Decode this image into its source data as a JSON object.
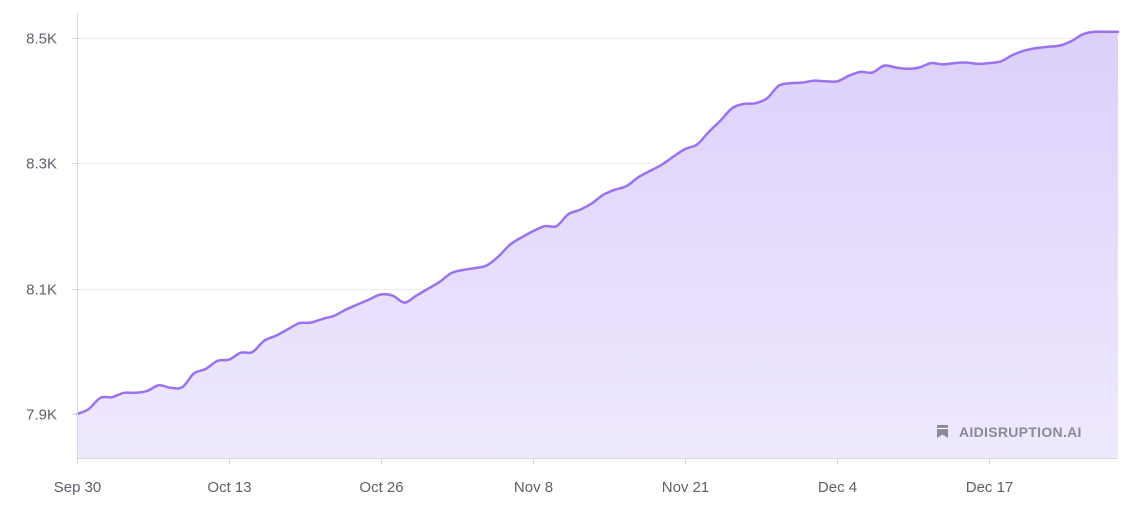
{
  "chart_data": {
    "type": "area",
    "x_tick_labels": [
      "Sep 30",
      "Oct 13",
      "Oct 26",
      "Nov 8",
      "Nov 21",
      "Dec 4",
      "Dec 17"
    ],
    "y_tick_labels": [
      "7.9K",
      "8.1K",
      "8.3K",
      "8.5K"
    ],
    "y_tick_values": [
      7900,
      8100,
      8300,
      8500
    ],
    "xlim": [
      "2024-09-30",
      "2024-12-28"
    ],
    "ylim": [
      7830,
      8540
    ],
    "grid": true,
    "colors": {
      "line": "#9b72ee",
      "fill_top": "#dcd0fb",
      "fill_bottom": "#efe9fe",
      "grid": "#ececf0"
    },
    "series": [
      {
        "values": [
          [
            "2024-09-30",
            7900
          ],
          [
            "2024-10-01",
            7908
          ],
          [
            "2024-10-02",
            7926
          ],
          [
            "2024-10-03",
            7927
          ],
          [
            "2024-10-04",
            7934
          ],
          [
            "2024-10-05",
            7934
          ],
          [
            "2024-10-06",
            7937
          ],
          [
            "2024-10-07",
            7946
          ],
          [
            "2024-10-08",
            7942
          ],
          [
            "2024-10-09",
            7943
          ],
          [
            "2024-10-10",
            7965
          ],
          [
            "2024-10-11",
            7972
          ],
          [
            "2024-10-12",
            7985
          ],
          [
            "2024-10-13",
            7987
          ],
          [
            "2024-10-14",
            7998
          ],
          [
            "2024-10-15",
            7999
          ],
          [
            "2024-10-16",
            8017
          ],
          [
            "2024-10-17",
            8025
          ],
          [
            "2024-10-18",
            8035
          ],
          [
            "2024-10-19",
            8045
          ],
          [
            "2024-10-20",
            8046
          ],
          [
            "2024-10-21",
            8052
          ],
          [
            "2024-10-22",
            8057
          ],
          [
            "2024-10-23",
            8067
          ],
          [
            "2024-10-24",
            8075
          ],
          [
            "2024-10-25",
            8083
          ],
          [
            "2024-10-26",
            8091
          ],
          [
            "2024-10-27",
            8089
          ],
          [
            "2024-10-28",
            8078
          ],
          [
            "2024-10-29",
            8089
          ],
          [
            "2024-10-30",
            8100
          ],
          [
            "2024-10-31",
            8111
          ],
          [
            "2024-11-01",
            8125
          ],
          [
            "2024-11-02",
            8130
          ],
          [
            "2024-11-03",
            8133
          ],
          [
            "2024-11-04",
            8137
          ],
          [
            "2024-11-05",
            8151
          ],
          [
            "2024-11-06",
            8170
          ],
          [
            "2024-11-07",
            8182
          ],
          [
            "2024-11-08",
            8192
          ],
          [
            "2024-11-09",
            8200
          ],
          [
            "2024-11-10",
            8200
          ],
          [
            "2024-11-11",
            8219
          ],
          [
            "2024-11-12",
            8226
          ],
          [
            "2024-11-13",
            8236
          ],
          [
            "2024-11-14",
            8250
          ],
          [
            "2024-11-15",
            8258
          ],
          [
            "2024-11-16",
            8264
          ],
          [
            "2024-11-17",
            8278
          ],
          [
            "2024-11-18",
            8288
          ],
          [
            "2024-11-19",
            8298
          ],
          [
            "2024-11-20",
            8311
          ],
          [
            "2024-11-21",
            8323
          ],
          [
            "2024-11-22",
            8330
          ],
          [
            "2024-11-23",
            8350
          ],
          [
            "2024-11-24",
            8368
          ],
          [
            "2024-11-25",
            8388
          ],
          [
            "2024-11-26",
            8395
          ],
          [
            "2024-11-27",
            8396
          ],
          [
            "2024-11-28",
            8404
          ],
          [
            "2024-11-29",
            8424
          ],
          [
            "2024-11-30",
            8428
          ],
          [
            "2024-12-01",
            8429
          ],
          [
            "2024-12-02",
            8432
          ],
          [
            "2024-12-03",
            8431
          ],
          [
            "2024-12-04",
            8431
          ],
          [
            "2024-12-05",
            8440
          ],
          [
            "2024-12-06",
            8446
          ],
          [
            "2024-12-07",
            8445
          ],
          [
            "2024-12-08",
            8456
          ],
          [
            "2024-12-09",
            8453
          ],
          [
            "2024-12-10",
            8451
          ],
          [
            "2024-12-11",
            8453
          ],
          [
            "2024-12-12",
            8460
          ],
          [
            "2024-12-13",
            8458
          ],
          [
            "2024-12-14",
            8460
          ],
          [
            "2024-12-15",
            8461
          ],
          [
            "2024-12-16",
            8459
          ],
          [
            "2024-12-17",
            8460
          ],
          [
            "2024-12-18",
            8463
          ],
          [
            "2024-12-19",
            8473
          ],
          [
            "2024-12-20",
            8480
          ],
          [
            "2024-12-21",
            8484
          ],
          [
            "2024-12-22",
            8486
          ],
          [
            "2024-12-23",
            8488
          ],
          [
            "2024-12-24",
            8495
          ],
          [
            "2024-12-25",
            8506
          ],
          [
            "2024-12-26",
            8510
          ],
          [
            "2024-12-27",
            8510
          ],
          [
            "2024-12-28",
            8510
          ]
        ]
      }
    ]
  },
  "watermark": {
    "text": "AIDISRUPTION.AI",
    "icon": "bookmark-icon"
  }
}
